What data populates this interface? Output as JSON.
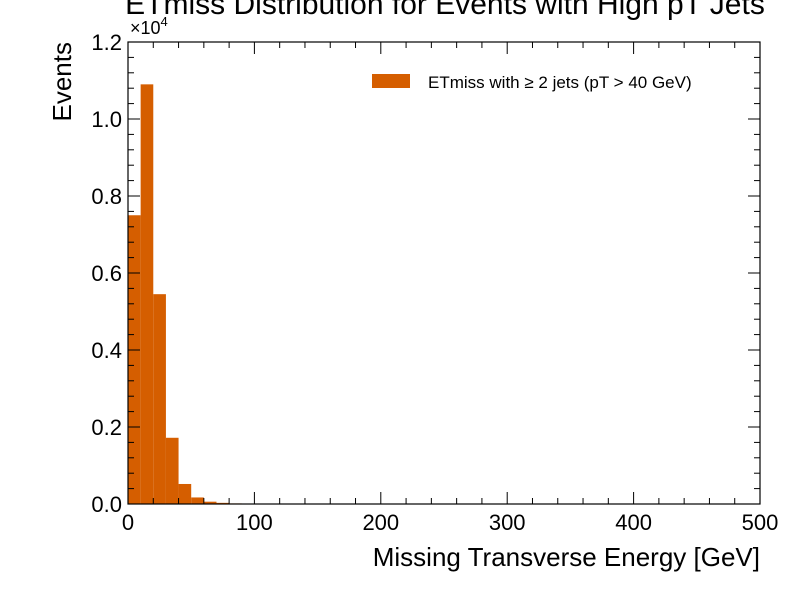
{
  "chart_data": {
    "type": "bar",
    "title": "ETmiss Distribution for Events with High pT Jets",
    "xlabel": "Missing Transverse Energy [GeV]",
    "ylabel": "Events",
    "y_multiplier_label": "×10",
    "y_multiplier_exponent": "4",
    "xlim": [
      0,
      500
    ],
    "ylim": [
      0,
      12000
    ],
    "x_ticks": [
      0,
      100,
      200,
      300,
      400,
      500
    ],
    "x_tick_labels": [
      "0",
      "100",
      "200",
      "300",
      "400",
      "500"
    ],
    "y_ticks": [
      0,
      2000,
      4000,
      6000,
      8000,
      10000,
      12000
    ],
    "y_tick_labels": [
      "0.0",
      "0.2",
      "0.4",
      "0.6",
      "0.8",
      "1.0",
      "1.2"
    ],
    "bin_width": 10,
    "bin_edges_start": [
      0,
      10,
      20,
      30,
      40,
      50,
      60,
      70,
      80,
      90,
      100
    ],
    "values": [
      7500,
      10900,
      5450,
      1720,
      520,
      170,
      60,
      30,
      15,
      6,
      3
    ],
    "series": [
      {
        "name": "ETmiss with  ≥ 2 jets (pT > 40 GeV)",
        "color": "#d55e00"
      }
    ],
    "legend_position": "top-right",
    "grid": false
  }
}
